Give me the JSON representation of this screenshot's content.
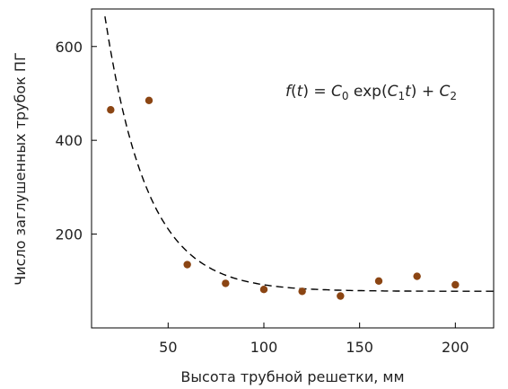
{
  "chart_data": {
    "type": "scatter",
    "xlabel": "Высота трубной решетки, мм",
    "ylabel": "Число заглушенных трубок ПГ",
    "xlim": [
      10,
      220
    ],
    "ylim": [
      0,
      680
    ],
    "x_ticks": [
      50,
      100,
      150,
      200
    ],
    "y_ticks": [
      200,
      400,
      600
    ],
    "grid": false,
    "series": [
      {
        "kind": "points",
        "color": "#8B4513",
        "x": [
          20,
          40,
          60,
          80,
          100,
          120,
          140,
          160,
          180,
          200
        ],
        "y": [
          465,
          485,
          135,
          95,
          82,
          78,
          68,
          100,
          110,
          92
        ]
      },
      {
        "kind": "fit-curve",
        "style": "dashed",
        "color": "#000000",
        "model": {
          "C0": 1260,
          "C1": -0.045,
          "C2": 78
        },
        "x_range": [
          10,
          220
        ]
      }
    ],
    "annotation": {
      "f": "f",
      "open": "(",
      "t": "t",
      "close": ")",
      "eq": " = ",
      "C": "C",
      "sub0": "0",
      "exp": " exp(",
      "sub1": "1",
      "close2": ")",
      "plus": " + ",
      "sub2": "2"
    }
  }
}
